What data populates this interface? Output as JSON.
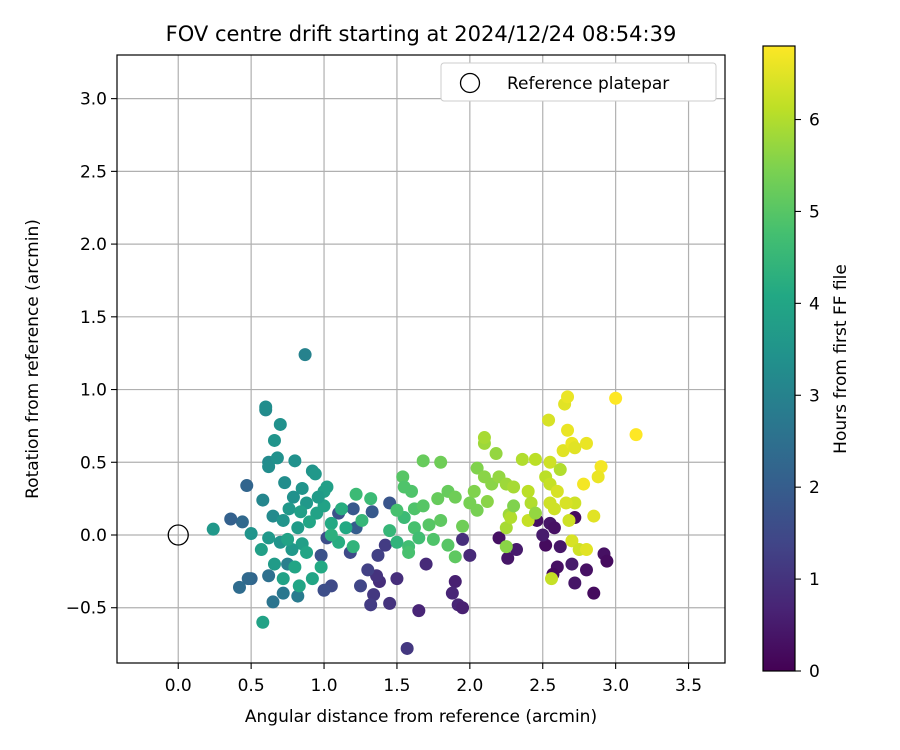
{
  "chart_data": {
    "type": "scatter",
    "title": "FOV centre drift starting at 2024/12/24 08:54:39",
    "xlabel": "Angular distance from reference (arcmin)",
    "ylabel": "Rotation from reference (arcmin)",
    "xlim": [
      -0.42,
      3.75
    ],
    "ylim": [
      -0.88,
      3.3
    ],
    "xticks": [
      0.0,
      0.5,
      1.0,
      1.5,
      2.0,
      2.5,
      3.0,
      3.5
    ],
    "xtick_labels": [
      "0.0",
      "0.5",
      "1.0",
      "1.5",
      "2.0",
      "2.5",
      "3.0",
      "3.5"
    ],
    "yticks": [
      -0.5,
      0.0,
      0.5,
      1.0,
      1.5,
      2.0,
      2.5,
      3.0
    ],
    "ytick_labels": [
      "−0.5",
      "0.0",
      "0.5",
      "1.0",
      "1.5",
      "2.0",
      "2.5",
      "3.0"
    ],
    "grid": true,
    "legend": {
      "placement": "top-right",
      "entries": [
        "Reference platepar"
      ]
    },
    "reference_point": {
      "name": "Reference platepar",
      "x": 0.0,
      "y": 0.0,
      "marker": "open-circle"
    },
    "colorbar": {
      "label": "Hours from first FF file",
      "colormap": "viridis",
      "range": [
        0,
        6.8
      ],
      "ticks": [
        0,
        1,
        2,
        3,
        4,
        5,
        6
      ],
      "tick_labels": [
        "0",
        "1",
        "2",
        "3",
        "4",
        "5",
        "6"
      ]
    },
    "points": [
      [
        2.52,
        -0.07,
        0.2
      ],
      [
        2.6,
        -0.22,
        0.3
      ],
      [
        2.72,
        -0.33,
        0.4
      ],
      [
        2.85,
        -0.4,
        0.2
      ],
      [
        2.92,
        -0.13,
        0.3
      ],
      [
        2.94,
        -0.18,
        0.2
      ],
      [
        2.8,
        -0.24,
        0.3
      ],
      [
        2.7,
        -0.2,
        0.5
      ],
      [
        2.62,
        -0.08,
        0.4
      ],
      [
        2.57,
        -0.27,
        0.2
      ],
      [
        2.2,
        -0.02,
        0.3
      ],
      [
        2.26,
        -0.16,
        0.4
      ],
      [
        2.32,
        -0.1,
        0.5
      ],
      [
        2.46,
        0.1,
        0.3
      ],
      [
        2.55,
        0.08,
        0.4
      ],
      [
        2.58,
        0.05,
        0.3
      ],
      [
        2.72,
        0.12,
        0.2
      ],
      [
        2.5,
        0.0,
        0.5
      ],
      [
        1.9,
        -0.32,
        0.6
      ],
      [
        1.92,
        -0.48,
        0.7
      ],
      [
        1.95,
        -0.5,
        0.6
      ],
      [
        1.88,
        -0.4,
        0.7
      ],
      [
        2.0,
        -0.14,
        0.8
      ],
      [
        1.95,
        -0.03,
        0.9
      ],
      [
        1.7,
        -0.2,
        0.8
      ],
      [
        1.65,
        -0.52,
        0.7
      ],
      [
        1.57,
        -0.78,
        1.1
      ],
      [
        1.5,
        -0.3,
        0.9
      ],
      [
        1.45,
        -0.47,
        1.0
      ],
      [
        1.38,
        -0.32,
        0.9
      ],
      [
        1.34,
        -0.41,
        1.1
      ],
      [
        1.36,
        -0.28,
        1.0
      ],
      [
        1.32,
        -0.48,
        1.2
      ],
      [
        1.3,
        -0.24,
        1.3
      ],
      [
        1.25,
        -0.35,
        1.4
      ],
      [
        1.42,
        -0.07,
        1.2
      ],
      [
        1.37,
        -0.14,
        1.3
      ],
      [
        1.18,
        -0.12,
        1.5
      ],
      [
        1.02,
        -0.02,
        1.6
      ],
      [
        0.98,
        -0.14,
        1.7
      ],
      [
        1.05,
        -0.35,
        1.5
      ],
      [
        1.0,
        -0.38,
        1.6
      ],
      [
        1.1,
        0.15,
        1.7
      ],
      [
        1.2,
        0.18,
        1.9
      ],
      [
        1.45,
        0.22,
        1.8
      ],
      [
        1.33,
        0.16,
        1.9
      ],
      [
        1.22,
        0.05,
        2.0
      ],
      [
        0.47,
        0.34,
        2.2
      ],
      [
        0.44,
        0.09,
        2.3
      ],
      [
        0.36,
        0.11,
        2.1
      ],
      [
        0.5,
        -0.3,
        2.2
      ],
      [
        0.48,
        -0.3,
        2.3
      ],
      [
        0.42,
        -0.36,
        2.4
      ],
      [
        0.65,
        -0.46,
        2.6
      ],
      [
        0.62,
        -0.28,
        2.5
      ],
      [
        0.72,
        -0.4,
        2.7
      ],
      [
        0.82,
        -0.42,
        2.8
      ],
      [
        0.75,
        -0.2,
        2.9
      ],
      [
        0.87,
        1.24,
        3.0
      ],
      [
        0.6,
        0.86,
        3.2
      ],
      [
        0.6,
        0.88,
        3.3
      ],
      [
        0.7,
        0.76,
        3.4
      ],
      [
        0.66,
        0.65,
        3.5
      ],
      [
        0.62,
        0.5,
        3.2
      ],
      [
        0.62,
        0.47,
        3.3
      ],
      [
        0.68,
        0.53,
        3.4
      ],
      [
        0.58,
        0.24,
        3.1
      ],
      [
        0.65,
        0.13,
        3.2
      ],
      [
        0.73,
        0.36,
        3.3
      ],
      [
        0.8,
        0.51,
        3.4
      ],
      [
        0.92,
        0.44,
        3.5
      ],
      [
        0.94,
        0.42,
        3.6
      ],
      [
        0.85,
        0.32,
        3.5
      ],
      [
        0.88,
        0.22,
        3.6
      ],
      [
        0.79,
        0.26,
        3.4
      ],
      [
        0.72,
        0.1,
        3.5
      ],
      [
        0.76,
        0.18,
        3.6
      ],
      [
        0.82,
        0.05,
        3.7
      ],
      [
        0.85,
        -0.06,
        3.8
      ],
      [
        0.78,
        -0.1,
        3.6
      ],
      [
        0.7,
        -0.05,
        3.5
      ],
      [
        0.66,
        -0.2,
        3.7
      ],
      [
        0.62,
        -0.02,
        3.6
      ],
      [
        0.57,
        -0.1,
        3.8
      ],
      [
        0.5,
        0.01,
        3.5
      ],
      [
        0.24,
        0.04,
        3.6
      ],
      [
        0.58,
        -0.6,
        3.9
      ],
      [
        0.83,
        -0.35,
        4.0
      ],
      [
        0.72,
        -0.3,
        3.9
      ],
      [
        0.92,
        -0.3,
        4.0
      ],
      [
        0.98,
        -0.22,
        4.1
      ],
      [
        1.0,
        0.2,
        3.9
      ],
      [
        1.0,
        0.3,
        3.8
      ],
      [
        0.95,
        0.15,
        3.9
      ],
      [
        0.9,
        0.09,
        4.0
      ],
      [
        1.05,
        0.08,
        4.1
      ],
      [
        1.12,
        0.18,
        4.2
      ],
      [
        1.15,
        0.05,
        4.1
      ],
      [
        1.1,
        -0.05,
        4.2
      ],
      [
        0.88,
        -0.12,
        4.0
      ],
      [
        0.75,
        -0.03,
        3.9
      ],
      [
        0.84,
        0.16,
        3.8
      ],
      [
        0.96,
        0.26,
        3.7
      ],
      [
        1.02,
        0.33,
        3.8
      ],
      [
        0.8,
        -0.22,
        4.0
      ],
      [
        1.05,
        0.0,
        4.3
      ],
      [
        1.2,
        -0.08,
        4.4
      ],
      [
        1.26,
        0.1,
        4.5
      ],
      [
        1.22,
        0.28,
        4.6
      ],
      [
        1.32,
        0.25,
        4.6
      ],
      [
        1.45,
        0.03,
        4.5
      ],
      [
        1.5,
        -0.05,
        4.4
      ],
      [
        1.55,
        0.12,
        4.6
      ],
      [
        1.58,
        -0.08,
        4.7
      ],
      [
        1.62,
        0.05,
        4.8
      ],
      [
        1.65,
        -0.02,
        4.7
      ],
      [
        1.6,
        0.3,
        4.9
      ],
      [
        1.54,
        0.4,
        5.0
      ],
      [
        1.55,
        0.33,
        4.9
      ],
      [
        1.5,
        0.17,
        4.8
      ],
      [
        1.62,
        0.18,
        4.9
      ],
      [
        1.58,
        -0.12,
        4.8
      ],
      [
        1.68,
        0.2,
        5.0
      ],
      [
        1.72,
        0.07,
        5.0
      ],
      [
        1.75,
        -0.03,
        4.9
      ],
      [
        1.8,
        0.1,
        5.1
      ],
      [
        1.85,
        -0.07,
        5.0
      ],
      [
        1.9,
        -0.15,
        5.1
      ],
      [
        1.68,
        0.51,
        5.2
      ],
      [
        1.8,
        0.5,
        5.3
      ],
      [
        1.85,
        0.3,
        5.2
      ],
      [
        1.9,
        0.26,
        5.3
      ],
      [
        1.78,
        0.25,
        5.2
      ],
      [
        1.95,
        0.06,
        5.3
      ],
      [
        2.0,
        0.22,
        5.4
      ],
      [
        2.05,
        0.46,
        5.5
      ],
      [
        2.1,
        0.4,
        5.6
      ],
      [
        2.15,
        0.35,
        5.6
      ],
      [
        2.18,
        0.56,
        5.7
      ],
      [
        2.1,
        0.63,
        5.8
      ],
      [
        2.1,
        0.67,
        5.9
      ],
      [
        2.03,
        0.3,
        5.5
      ],
      [
        2.05,
        0.17,
        5.4
      ],
      [
        2.12,
        0.23,
        5.6
      ],
      [
        2.2,
        0.4,
        5.7
      ],
      [
        2.25,
        0.35,
        5.8
      ],
      [
        2.3,
        0.33,
        5.9
      ],
      [
        2.27,
        0.14,
        5.8
      ],
      [
        2.25,
        0.05,
        5.9
      ],
      [
        2.28,
        0.12,
        6.0
      ],
      [
        2.36,
        0.52,
        6.0
      ],
      [
        2.4,
        0.3,
        6.1
      ],
      [
        2.42,
        0.22,
        6.0
      ],
      [
        2.45,
        0.52,
        6.1
      ],
      [
        2.4,
        0.1,
        6.2
      ],
      [
        2.52,
        0.4,
        6.1
      ],
      [
        2.55,
        0.35,
        6.2
      ],
      [
        2.55,
        0.22,
        6.3
      ],
      [
        2.58,
        0.18,
        6.3
      ],
      [
        2.55,
        0.5,
        6.3
      ],
      [
        2.54,
        0.79,
        6.4
      ],
      [
        2.6,
        0.3,
        6.4
      ],
      [
        2.64,
        0.58,
        6.5
      ],
      [
        2.65,
        0.9,
        6.5
      ],
      [
        2.67,
        0.95,
        6.6
      ],
      [
        2.67,
        0.72,
        6.6
      ],
      [
        2.7,
        0.63,
        6.6
      ],
      [
        2.72,
        0.6,
        6.5
      ],
      [
        2.8,
        0.63,
        6.6
      ],
      [
        2.9,
        0.47,
        6.7
      ],
      [
        2.88,
        0.4,
        6.6
      ],
      [
        2.85,
        0.13,
        6.5
      ],
      [
        2.7,
        -0.04,
        6.4
      ],
      [
        2.75,
        -0.1,
        6.3
      ],
      [
        2.8,
        -0.1,
        6.5
      ],
      [
        2.72,
        0.22,
        6.3
      ],
      [
        2.66,
        0.22,
        6.4
      ],
      [
        2.78,
        0.35,
        6.7
      ],
      [
        2.56,
        -0.3,
        6.2
      ],
      [
        2.68,
        0.1,
        6.3
      ],
      [
        3.0,
        0.94,
        6.8
      ],
      [
        3.14,
        0.69,
        6.8
      ],
      [
        2.25,
        -0.08,
        5.6
      ],
      [
        2.45,
        0.15,
        5.7
      ],
      [
        2.3,
        0.2,
        5.5
      ],
      [
        2.62,
        0.45,
        6.0
      ]
    ]
  }
}
